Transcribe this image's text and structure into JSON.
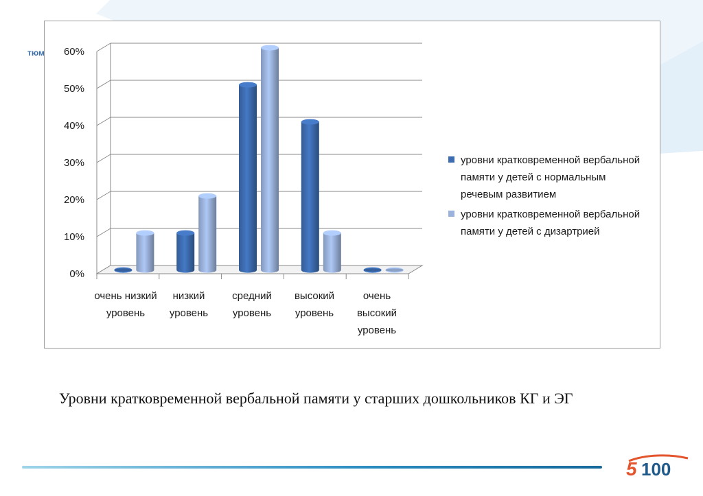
{
  "header_fragment": "тюм",
  "chart_data": {
    "type": "bar",
    "title": "",
    "xlabel": "",
    "ylabel": "",
    "ylim": [
      0,
      60
    ],
    "y_ticks": [
      "0%",
      "10%",
      "20%",
      "30%",
      "40%",
      "50%",
      "60%"
    ],
    "categories": [
      "очень низкий уровень",
      "низкий уровень",
      "средний уровень",
      "высокий уровень",
      "очень высокий уровень"
    ],
    "series": [
      {
        "name": "уровни кратковременной вербальной памяти у детей с нормальным речевым развитием",
        "color": "#3d6cb0",
        "values": [
          0,
          10,
          50,
          40,
          0
        ]
      },
      {
        "name": "уровни кратковременной вербальной памяти у детей с дизартрией",
        "color": "#9bb3dc",
        "values": [
          10,
          20,
          60,
          10,
          0
        ]
      }
    ],
    "grid": true,
    "legend_position": "right"
  },
  "caption": "Уровни кратковременной вербальной памяти у старших дошкольников КГ и ЭГ",
  "logo": {
    "digit": "5",
    "number": "100",
    "color": "#e2552d"
  }
}
